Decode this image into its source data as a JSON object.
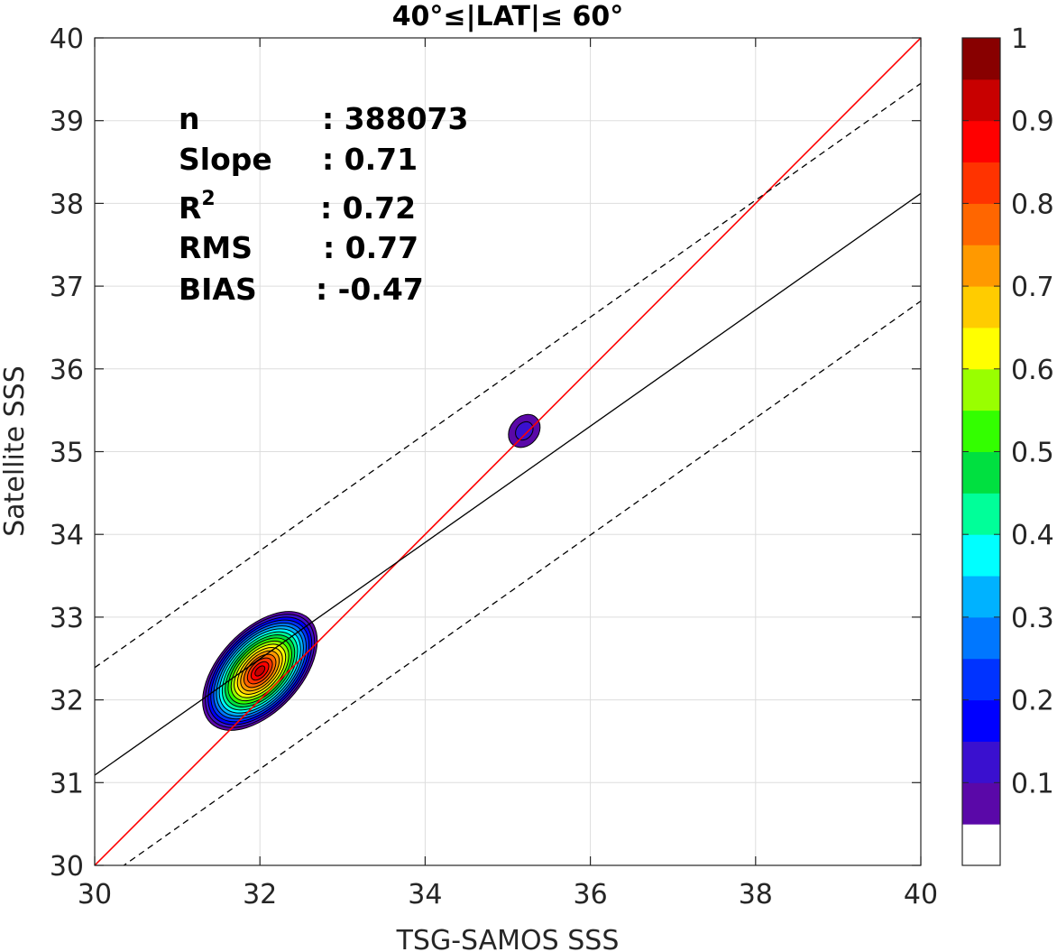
{
  "chart_data": {
    "type": "contour",
    "title": "40°≤|LAT|≤ 60°",
    "xlabel": "TSG-SAMOS SSS",
    "ylabel": "Satellite SSS",
    "xlim": [
      30,
      40
    ],
    "ylim": [
      30,
      40
    ],
    "xticks": [
      "30",
      "32",
      "34",
      "36",
      "38",
      "40"
    ],
    "yticks": [
      "30",
      "31",
      "32",
      "33",
      "34",
      "35",
      "36",
      "37",
      "38",
      "39",
      "40"
    ],
    "grid": true,
    "stats": {
      "n": {
        "label": "n",
        "value": ": 388073"
      },
      "slope": {
        "label": "Slope",
        "value": ": 0.71"
      },
      "r2": {
        "label": "R",
        "sup": "2",
        "value": ": 0.72"
      },
      "rms": {
        "label": "RMS",
        "value": ": 0.77"
      },
      "bias": {
        "label": "BIAS",
        "value": ": -0.47"
      }
    },
    "lines": {
      "identity": {
        "x": [
          30,
          40
        ],
        "y": [
          30,
          40
        ],
        "color": "#ff0000"
      },
      "fit": {
        "x": [
          30,
          40
        ],
        "y": [
          31.09,
          38.12
        ],
        "color": "#000000"
      },
      "upper": {
        "x": [
          30,
          40
        ],
        "y": [
          32.39,
          39.45
        ],
        "color": "#000000",
        "dash": true
      },
      "lower": {
        "x": [
          30,
          40
        ],
        "y": [
          29.75,
          36.82
        ],
        "color": "#000000",
        "dash": true
      }
    },
    "clusters": [
      {
        "center": [
          32.0,
          32.35
        ],
        "extent": [
          1.4,
          1.3
        ],
        "peak": 0.95,
        "orient_deg": 47
      },
      {
        "center": [
          35.2,
          35.25
        ],
        "extent": [
          0.35,
          0.45
        ],
        "peak": 0.12,
        "orient_deg": 50
      }
    ],
    "colorbar": {
      "ticks": [
        "0.1",
        "0.2",
        "0.3",
        "0.4",
        "0.5",
        "0.6",
        "0.7",
        "0.8",
        "0.9",
        "1"
      ],
      "levels": [
        "#ffffff",
        "#5a08a8",
        "#3a10cf",
        "#0000ff",
        "#0033ff",
        "#0077ff",
        "#00b2ff",
        "#00ffff",
        "#00ff99",
        "#00e040",
        "#33ff00",
        "#99ff00",
        "#ffff00",
        "#ffcc00",
        "#ff9900",
        "#ff6600",
        "#ff3300",
        "#ff0000",
        "#c80000",
        "#880000"
      ]
    }
  }
}
